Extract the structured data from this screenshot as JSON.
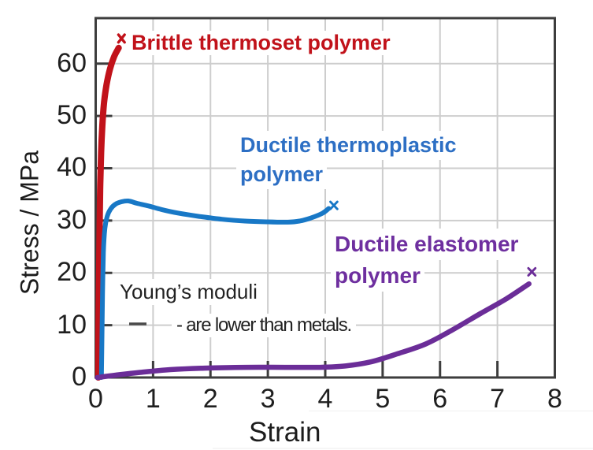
{
  "chart_data": {
    "type": "line",
    "title": "",
    "xlabel": "Strain",
    "ylabel": "Stress / MPa",
    "xlim": [
      0,
      8
    ],
    "ylim": [
      0,
      68.7
    ],
    "xticks": [
      "0",
      "1",
      "2",
      "3",
      "4",
      "5",
      "6",
      "7",
      "8"
    ],
    "yticks": [
      "0",
      "10",
      "20",
      "30",
      "40",
      "50",
      "60"
    ],
    "grid": true,
    "grid_color": "#cdcdcd",
    "axis_color": "#3d3d3d",
    "series": [
      {
        "name": "Brittle thermoset polymer",
        "color": "#c1121a",
        "stroke_width": 8,
        "points": [
          [
            0.045,
            0
          ],
          [
            0.05,
            10
          ],
          [
            0.06,
            20
          ],
          [
            0.07,
            30
          ],
          [
            0.08,
            37
          ],
          [
            0.095,
            43
          ],
          [
            0.115,
            48
          ],
          [
            0.145,
            52.5
          ],
          [
            0.19,
            56
          ],
          [
            0.25,
            59
          ],
          [
            0.32,
            61.3
          ],
          [
            0.4,
            63
          ]
        ],
        "end_marker": [
          0.45,
          64.8
        ]
      },
      {
        "name": "Ductile thermoplastic polymer",
        "color": "#1878c6",
        "stroke_width": 6,
        "points": [
          [
            0.1,
            0
          ],
          [
            0.11,
            8
          ],
          [
            0.12,
            16
          ],
          [
            0.135,
            24
          ],
          [
            0.16,
            28.5
          ],
          [
            0.2,
            30.8
          ],
          [
            0.26,
            32.2
          ],
          [
            0.34,
            33.1
          ],
          [
            0.45,
            33.6
          ],
          [
            0.57,
            33.75
          ],
          [
            0.72,
            33.3
          ],
          [
            0.92,
            32.8
          ],
          [
            1.15,
            32.1
          ],
          [
            1.45,
            31.4
          ],
          [
            1.8,
            30.8
          ],
          [
            2.2,
            30.25
          ],
          [
            2.6,
            29.9
          ],
          [
            3.0,
            29.75
          ],
          [
            3.35,
            29.7
          ],
          [
            3.55,
            29.9
          ],
          [
            3.75,
            30.5
          ],
          [
            3.95,
            31.4
          ],
          [
            4.06,
            32.3
          ]
        ],
        "end_marker": [
          4.15,
          32.9
        ]
      },
      {
        "name": "Ductile elastomer polymer",
        "color": "#6b2d98",
        "stroke_width": 6.5,
        "points": [
          [
            0.03,
            0
          ],
          [
            0.35,
            0.45
          ],
          [
            0.8,
            1.0
          ],
          [
            1.3,
            1.5
          ],
          [
            1.9,
            1.8
          ],
          [
            2.6,
            1.95
          ],
          [
            3.3,
            1.95
          ],
          [
            3.9,
            1.95
          ],
          [
            4.35,
            2.2
          ],
          [
            4.8,
            3.0
          ],
          [
            5.25,
            4.5
          ],
          [
            5.75,
            6.4
          ],
          [
            6.2,
            9.0
          ],
          [
            6.7,
            12.2
          ],
          [
            7.15,
            15.0
          ],
          [
            7.55,
            17.9
          ]
        ],
        "end_marker": [
          7.6,
          20.2
        ]
      }
    ],
    "annotations": [
      {
        "id": "brittle-label",
        "lines": [
          "Brittle thermoset polymer"
        ],
        "color": "#c1121a"
      },
      {
        "id": "thermoplastic-label",
        "lines": [
          "Ductile thermoplastic",
          "polymer"
        ],
        "color": "#2d6fc4"
      },
      {
        "id": "elastomer-label",
        "lines": [
          "Ductile elastomer",
          "polymer"
        ],
        "color": "#6e2f9f"
      },
      {
        "id": "note",
        "lines": [
          "Young’s moduli",
          "- are lower than metals."
        ],
        "color": "#222222"
      }
    ]
  }
}
